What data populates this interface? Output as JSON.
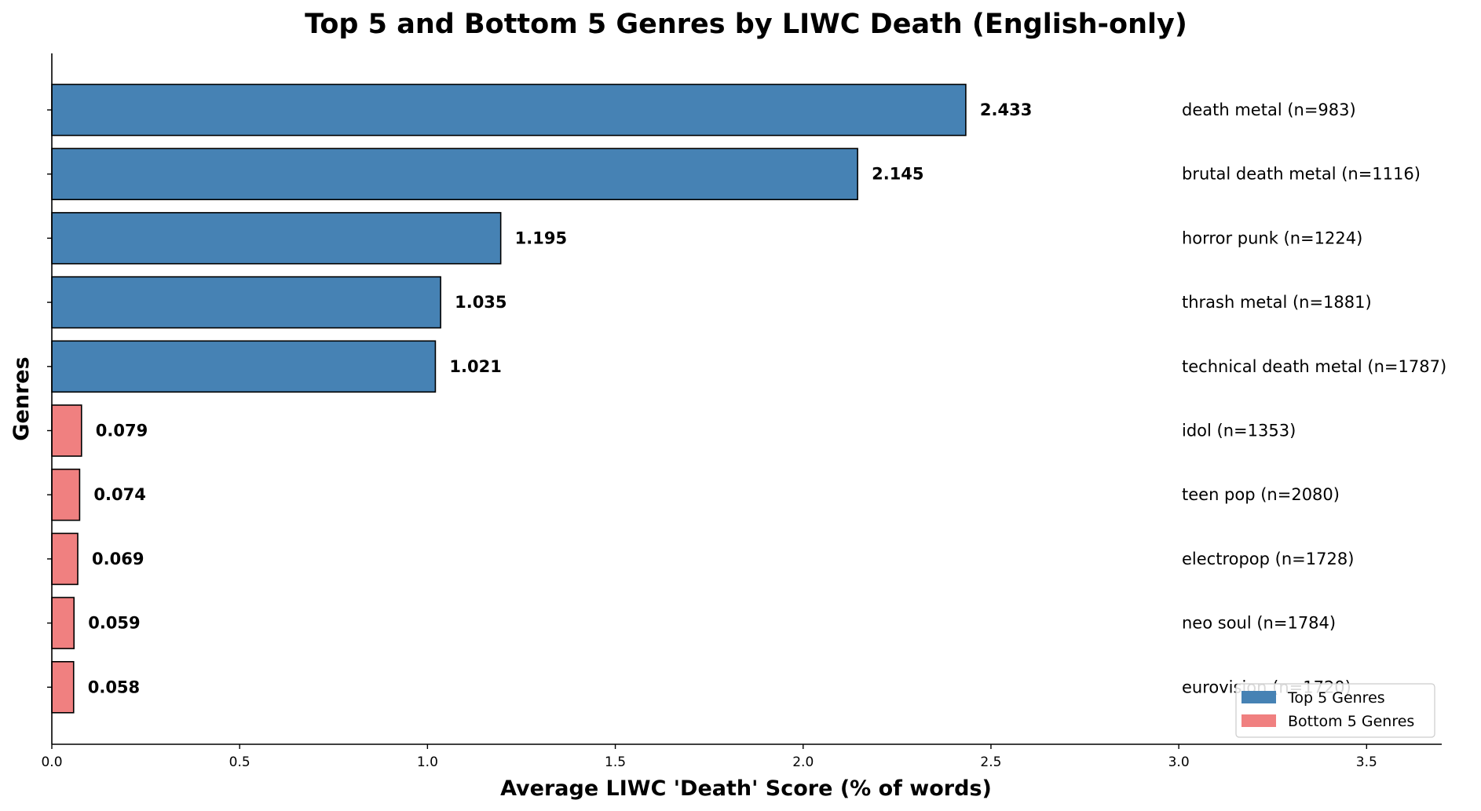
{
  "chart_data": {
    "type": "bar",
    "orientation": "horizontal",
    "title": "Top 5 and Bottom 5 Genres by LIWC Death (English-only)",
    "xlabel": "Average LIWC 'Death' Score (% of words)",
    "ylabel": "Genres",
    "xlim": [
      0,
      3.7
    ],
    "xticks": [
      "0.0",
      "0.5",
      "1.0",
      "1.5",
      "2.0",
      "2.5",
      "3.0",
      "3.5"
    ],
    "xtick_values": [
      0,
      0.5,
      1.0,
      1.5,
      2.0,
      2.5,
      3.0,
      3.5
    ],
    "grid": false,
    "legend_position": "bottom-right",
    "series": [
      {
        "name": "Top 5 Genres",
        "color": "#4682b4"
      },
      {
        "name": "Bottom 5 Genres",
        "color": "#f08080"
      }
    ],
    "bars": [
      {
        "label": "death metal (n=983)",
        "value": 2.433,
        "value_label": "2.433",
        "group": 0
      },
      {
        "label": "brutal death metal (n=1116)",
        "value": 2.145,
        "value_label": "2.145",
        "group": 0
      },
      {
        "label": "horror punk (n=1224)",
        "value": 1.195,
        "value_label": "1.195",
        "group": 0
      },
      {
        "label": "thrash metal (n=1881)",
        "value": 1.035,
        "value_label": "1.035",
        "group": 0
      },
      {
        "label": "technical death metal (n=1787)",
        "value": 1.021,
        "value_label": "1.021",
        "group": 0
      },
      {
        "label": "idol (n=1353)",
        "value": 0.079,
        "value_label": "0.079",
        "group": 1
      },
      {
        "label": "teen pop (n=2080)",
        "value": 0.074,
        "value_label": "0.074",
        "group": 1
      },
      {
        "label": "electropop (n=1728)",
        "value": 0.069,
        "value_label": "0.069",
        "group": 1
      },
      {
        "label": "neo soul (n=1784)",
        "value": 0.059,
        "value_label": "0.059",
        "group": 1
      },
      {
        "label": "eurovision (n=1720)",
        "value": 0.058,
        "value_label": "0.058",
        "group": 1
      }
    ]
  }
}
